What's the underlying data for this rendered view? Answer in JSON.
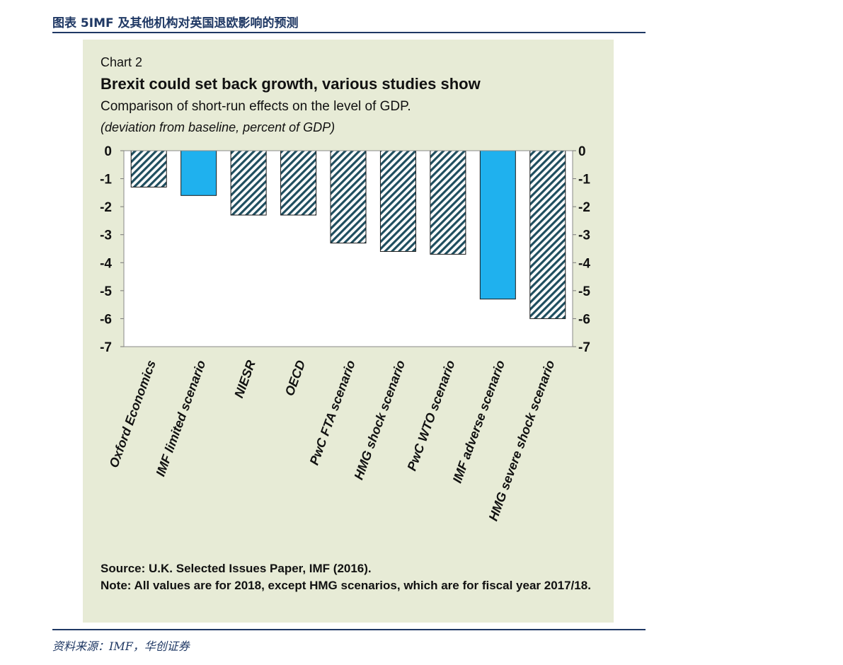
{
  "header": {
    "caption": "图表 5IMF 及其他机构对英国退欧影响的预测"
  },
  "footer": {
    "source": "资料来源：IMF，华创证券"
  },
  "chart_data": {
    "type": "bar",
    "label": "Chart 2",
    "title": "Brexit could set back growth, various studies show",
    "subtitle": "Comparison of short-run effects on the level of GDP.",
    "unit_note": "(deviation from baseline, percent of GDP)",
    "categories": [
      "Oxford Economics",
      "IMF limited scenario",
      "NIESR",
      "OECD",
      "PwC FTA scenario",
      "HMG shock scenario",
      "PwC WTO scenario",
      "IMF adverse scenario",
      "HMG severe shock scenario"
    ],
    "values": [
      -1.3,
      -1.6,
      -2.3,
      -2.3,
      -3.3,
      -3.6,
      -3.7,
      -5.3,
      -6.0
    ],
    "styles": [
      "hatched",
      "solid",
      "hatched",
      "hatched",
      "hatched",
      "hatched",
      "hatched",
      "solid",
      "hatched"
    ],
    "ylim": [
      -7,
      0
    ],
    "yticks": [
      0,
      -1,
      -2,
      -3,
      -4,
      -5,
      -6,
      -7
    ],
    "colors": {
      "solid": "#1fb1ee",
      "hatch": "#1f4e5f",
      "plot_bg": "#ffffff",
      "panel_bg": "#e7ebd6"
    },
    "source": "Source: U.K. Selected Issues Paper, IMF (2016).",
    "note": "Note: All values are for 2018, except HMG scenarios, which are for fiscal year 2017/18."
  }
}
